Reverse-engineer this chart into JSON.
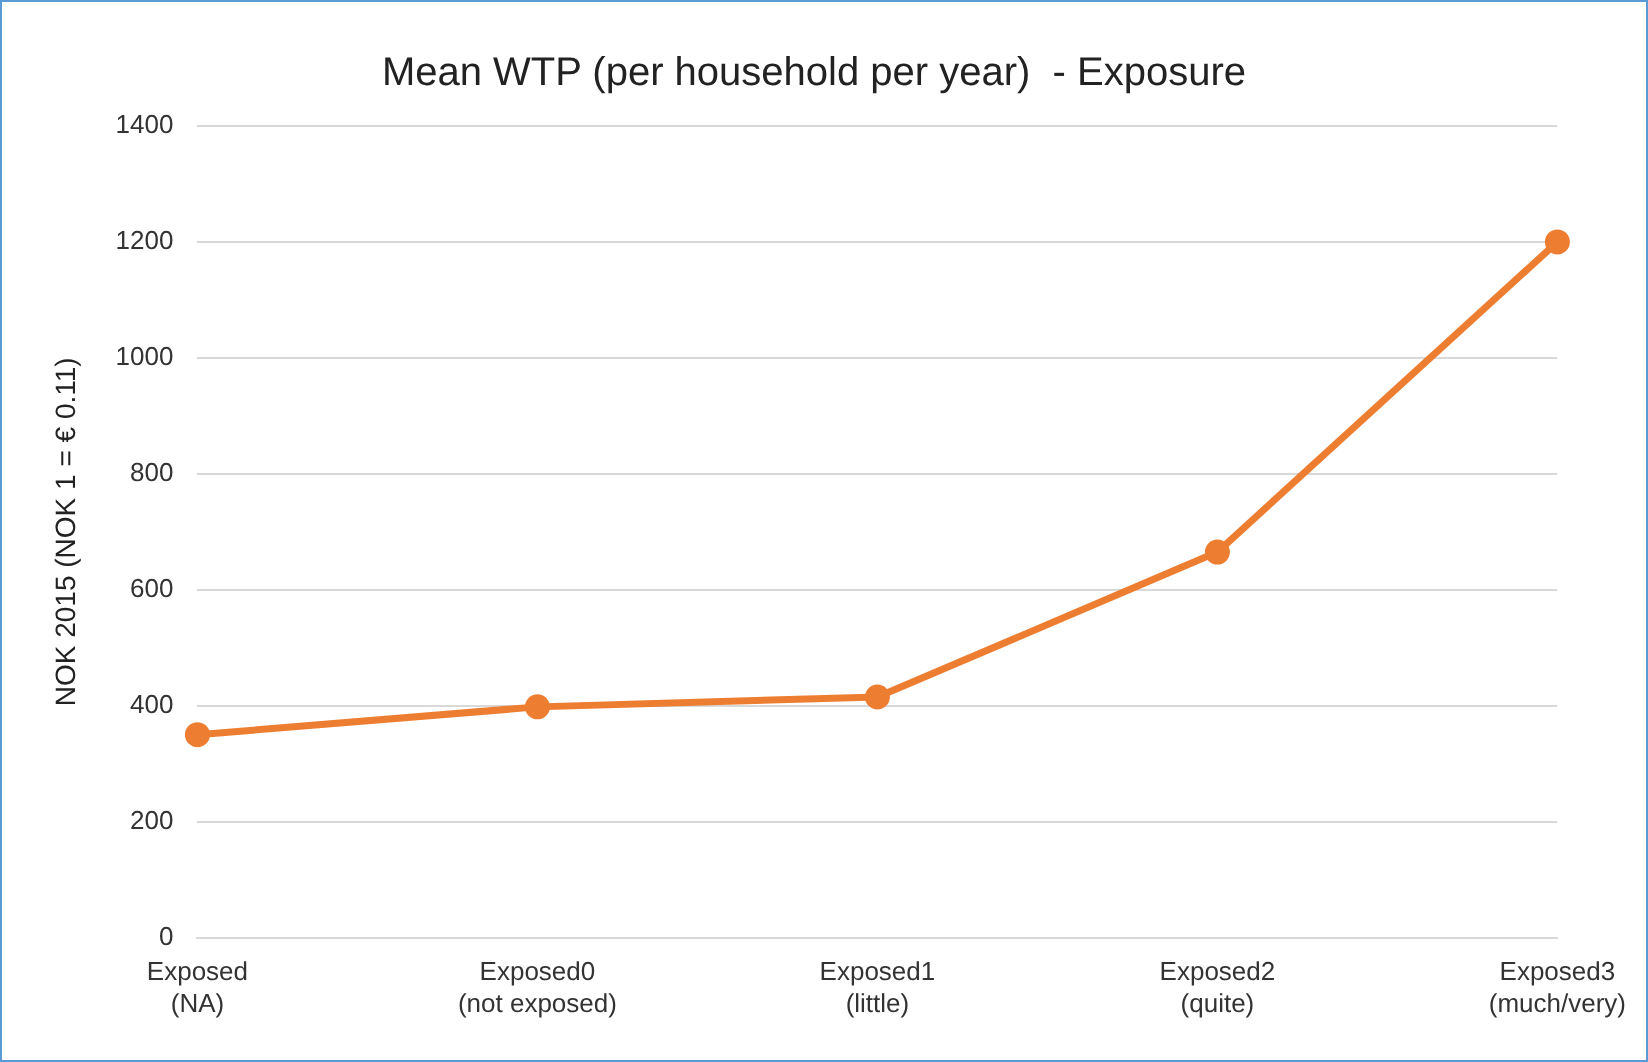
{
  "chart_data": {
    "type": "line",
    "title": "Mean WTP (per household per year)  - Exposure",
    "ylabel": "NOK 2015 (NOK 1 = € 0.11)",
    "categories": [
      "Exposed\n(NA)",
      "Exposed0\n(not exposed)",
      "Exposed1\n(little)",
      "Exposed2\n(quite)",
      "Exposed3\n(much/very)"
    ],
    "series": [
      {
        "color": "#ed7d31",
        "values": [
          350,
          398,
          415,
          665,
          1200
        ]
      }
    ],
    "ylim": [
      0,
      1400
    ],
    "yticks": [
      0,
      200,
      400,
      600,
      800,
      1000,
      1200,
      1400
    ],
    "grid": "y",
    "legend": false,
    "marker": "circle",
    "line_style": "solid"
  }
}
